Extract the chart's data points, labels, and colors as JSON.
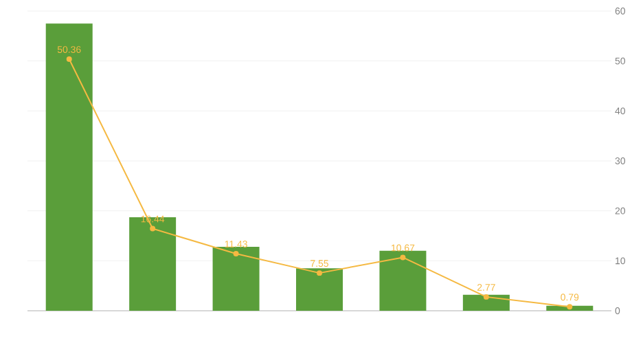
{
  "chart_data": {
    "type": "bar",
    "categories": [
      null,
      null,
      null,
      null,
      null,
      null,
      null
    ],
    "series": [
      {
        "color": "#5a9e3a",
        "values": [
          57.5,
          18.7,
          12.8,
          8.5,
          12.0,
          3.2,
          1.0
        ]
      },
      {
        "type": "line",
        "color": "#f5b942",
        "values": [
          50.36,
          16.44,
          11.43,
          7.55,
          10.67,
          2.77,
          0.79
        ],
        "value_labels": [
          "50.36",
          "16.44",
          "11.43",
          "7.55",
          "10.67",
          "2.77",
          "0.79"
        ],
        "marker": "circle"
      }
    ],
    "ylim": [
      0,
      60
    ],
    "yticks": [
      0,
      10,
      20,
      30,
      40,
      50,
      60
    ],
    "grid": "y"
  }
}
